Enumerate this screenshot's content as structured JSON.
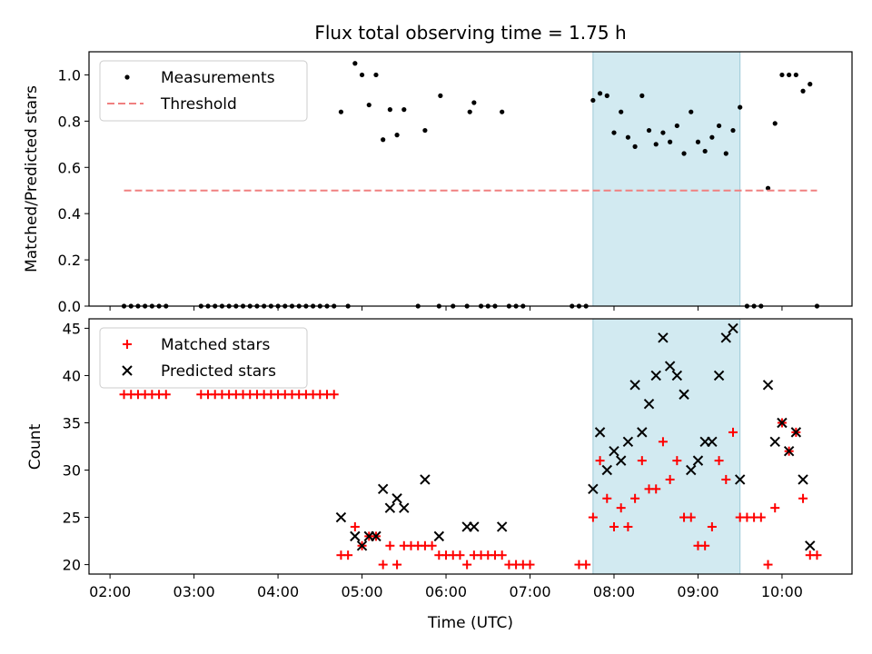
{
  "chart_data": [
    {
      "type": "scatter",
      "title": "Flux total observing time = 1.75 h",
      "xlabel": "",
      "ylabel": "Matched/Predicted stars",
      "ylim": [
        0,
        1.1
      ],
      "yticks": [
        "0.0",
        "0.2",
        "0.4",
        "0.6",
        "0.8",
        "1.0"
      ],
      "grid": false,
      "legend": "top-left",
      "highlight": {
        "x_start": "07:45",
        "x_end": "09:30",
        "color": "#add8e6"
      },
      "series": [
        {
          "name": "Measurements",
          "color": "#000000",
          "marker": "dot",
          "points": [
            [
              "02:10",
              0
            ],
            [
              "02:15",
              0
            ],
            [
              "02:20",
              0
            ],
            [
              "02:25",
              0
            ],
            [
              "02:30",
              0
            ],
            [
              "02:35",
              0
            ],
            [
              "02:40",
              0
            ],
            [
              "03:05",
              0
            ],
            [
              "03:10",
              0
            ],
            [
              "03:15",
              0
            ],
            [
              "03:20",
              0
            ],
            [
              "03:25",
              0
            ],
            [
              "03:30",
              0
            ],
            [
              "03:35",
              0
            ],
            [
              "03:40",
              0
            ],
            [
              "03:45",
              0
            ],
            [
              "03:50",
              0
            ],
            [
              "03:55",
              0
            ],
            [
              "04:00",
              0
            ],
            [
              "04:05",
              0
            ],
            [
              "04:10",
              0
            ],
            [
              "04:15",
              0
            ],
            [
              "04:20",
              0
            ],
            [
              "04:25",
              0
            ],
            [
              "04:30",
              0
            ],
            [
              "04:35",
              0
            ],
            [
              "04:40",
              0
            ],
            [
              "04:50",
              0
            ],
            [
              "04:45",
              0.84
            ],
            [
              "04:55",
              1.05
            ],
            [
              "05:00",
              1.0
            ],
            [
              "05:05",
              0.87
            ],
            [
              "05:10",
              1.0
            ],
            [
              "05:15",
              0.72
            ],
            [
              "05:20",
              0.85
            ],
            [
              "05:25",
              0.74
            ],
            [
              "05:30",
              0.85
            ],
            [
              "05:40",
              0
            ],
            [
              "05:45",
              0.76
            ],
            [
              "05:55",
              0
            ],
            [
              "05:56",
              0.91
            ],
            [
              "06:05",
              0
            ],
            [
              "06:15",
              0
            ],
            [
              "06:17",
              0.84
            ],
            [
              "06:20",
              0.88
            ],
            [
              "06:25",
              0
            ],
            [
              "06:30",
              0
            ],
            [
              "06:35",
              0
            ],
            [
              "06:40",
              0.84
            ],
            [
              "06:45",
              0
            ],
            [
              "06:50",
              0
            ],
            [
              "06:55",
              0
            ],
            [
              "07:30",
              0
            ],
            [
              "07:35",
              0
            ],
            [
              "07:40",
              0
            ],
            [
              "07:45",
              0.89
            ],
            [
              "07:50",
              0.92
            ],
            [
              "07:55",
              0.91
            ],
            [
              "08:00",
              0.75
            ],
            [
              "08:05",
              0.84
            ],
            [
              "08:10",
              0.73
            ],
            [
              "08:15",
              0.69
            ],
            [
              "08:20",
              0.91
            ],
            [
              "08:25",
              0.76
            ],
            [
              "08:30",
              0.7
            ],
            [
              "08:35",
              0.75
            ],
            [
              "08:40",
              0.71
            ],
            [
              "08:45",
              0.78
            ],
            [
              "08:50",
              0.66
            ],
            [
              "08:55",
              0.84
            ],
            [
              "09:00",
              0.71
            ],
            [
              "09:05",
              0.67
            ],
            [
              "09:10",
              0.73
            ],
            [
              "09:15",
              0.78
            ],
            [
              "09:20",
              0.66
            ],
            [
              "09:25",
              0.76
            ],
            [
              "09:30",
              0.86
            ],
            [
              "09:35",
              0
            ],
            [
              "09:40",
              0
            ],
            [
              "09:45",
              0
            ],
            [
              "09:50",
              0.51
            ],
            [
              "09:55",
              0.79
            ],
            [
              "10:00",
              1.0
            ],
            [
              "10:05",
              1.0
            ],
            [
              "10:10",
              1.0
            ],
            [
              "10:15",
              0.93
            ],
            [
              "10:20",
              0.96
            ],
            [
              "10:25",
              0
            ]
          ]
        },
        {
          "name": "Threshold",
          "color": "#f08080",
          "style": "dashed",
          "points": [
            [
              "02:10",
              0.5
            ],
            [
              "10:25",
              0.5
            ]
          ]
        }
      ]
    },
    {
      "type": "scatter",
      "title": "",
      "xlabel": "Time (UTC)",
      "ylabel": "Count",
      "ylim": [
        19,
        46
      ],
      "yticks": [
        "20",
        "25",
        "30",
        "35",
        "40",
        "45"
      ],
      "xticks": [
        "02:00",
        "03:00",
        "04:00",
        "05:00",
        "06:00",
        "07:00",
        "08:00",
        "09:00",
        "10:00"
      ],
      "grid": false,
      "legend": "top-left",
      "highlight": {
        "x_start": "07:45",
        "x_end": "09:30",
        "color": "#add8e6"
      },
      "series": [
        {
          "name": "Matched stars",
          "color": "#ff0000",
          "marker": "plus",
          "points": [
            [
              "02:10",
              38
            ],
            [
              "02:15",
              38
            ],
            [
              "02:20",
              38
            ],
            [
              "02:25",
              38
            ],
            [
              "02:30",
              38
            ],
            [
              "02:35",
              38
            ],
            [
              "02:40",
              38
            ],
            [
              "03:05",
              38
            ],
            [
              "03:10",
              38
            ],
            [
              "03:15",
              38
            ],
            [
              "03:20",
              38
            ],
            [
              "03:25",
              38
            ],
            [
              "03:30",
              38
            ],
            [
              "03:35",
              38
            ],
            [
              "03:40",
              38
            ],
            [
              "03:45",
              38
            ],
            [
              "03:50",
              38
            ],
            [
              "03:55",
              38
            ],
            [
              "04:00",
              38
            ],
            [
              "04:05",
              38
            ],
            [
              "04:10",
              38
            ],
            [
              "04:15",
              38
            ],
            [
              "04:20",
              38
            ],
            [
              "04:25",
              38
            ],
            [
              "04:30",
              38
            ],
            [
              "04:35",
              38
            ],
            [
              "04:40",
              38
            ],
            [
              "04:45",
              21
            ],
            [
              "04:50",
              21
            ],
            [
              "04:55",
              24
            ],
            [
              "05:00",
              22
            ],
            [
              "05:05",
              23
            ],
            [
              "05:10",
              23
            ],
            [
              "05:15",
              20
            ],
            [
              "05:20",
              22
            ],
            [
              "05:25",
              20
            ],
            [
              "05:30",
              22
            ],
            [
              "05:35",
              22
            ],
            [
              "05:40",
              22
            ],
            [
              "05:45",
              22
            ],
            [
              "05:50",
              22
            ],
            [
              "05:55",
              21
            ],
            [
              "06:00",
              21
            ],
            [
              "06:05",
              21
            ],
            [
              "06:10",
              21
            ],
            [
              "06:15",
              20
            ],
            [
              "06:20",
              21
            ],
            [
              "06:25",
              21
            ],
            [
              "06:30",
              21
            ],
            [
              "06:35",
              21
            ],
            [
              "06:40",
              21
            ],
            [
              "06:45",
              20
            ],
            [
              "06:50",
              20
            ],
            [
              "06:55",
              20
            ],
            [
              "07:00",
              20
            ],
            [
              "07:35",
              20
            ],
            [
              "07:40",
              20
            ],
            [
              "07:45",
              25
            ],
            [
              "07:50",
              31
            ],
            [
              "07:55",
              27
            ],
            [
              "08:00",
              24
            ],
            [
              "08:05",
              26
            ],
            [
              "08:10",
              24
            ],
            [
              "08:15",
              27
            ],
            [
              "08:20",
              31
            ],
            [
              "08:25",
              28
            ],
            [
              "08:30",
              28
            ],
            [
              "08:35",
              33
            ],
            [
              "08:40",
              29
            ],
            [
              "08:45",
              31
            ],
            [
              "08:50",
              25
            ],
            [
              "08:55",
              25
            ],
            [
              "09:00",
              22
            ],
            [
              "09:05",
              22
            ],
            [
              "09:10",
              24
            ],
            [
              "09:15",
              31
            ],
            [
              "09:20",
              29
            ],
            [
              "09:25",
              34
            ],
            [
              "09:30",
              25
            ],
            [
              "09:35",
              25
            ],
            [
              "09:40",
              25
            ],
            [
              "09:45",
              25
            ],
            [
              "09:50",
              20
            ],
            [
              "09:55",
              26
            ],
            [
              "10:00",
              35
            ],
            [
              "10:05",
              32
            ],
            [
              "10:10",
              34
            ],
            [
              "10:15",
              27
            ],
            [
              "10:20",
              21
            ],
            [
              "10:25",
              21
            ]
          ]
        },
        {
          "name": "Predicted stars",
          "color": "#000000",
          "marker": "x",
          "points": [
            [
              "04:45",
              25
            ],
            [
              "04:55",
              23
            ],
            [
              "05:00",
              22
            ],
            [
              "05:05",
              23
            ],
            [
              "05:10",
              23
            ],
            [
              "05:15",
              28
            ],
            [
              "05:20",
              26
            ],
            [
              "05:25",
              27
            ],
            [
              "05:30",
              26
            ],
            [
              "05:45",
              29
            ],
            [
              "05:55",
              23
            ],
            [
              "06:15",
              24
            ],
            [
              "06:20",
              24
            ],
            [
              "06:40",
              24
            ],
            [
              "07:45",
              28
            ],
            [
              "07:50",
              34
            ],
            [
              "07:55",
              30
            ],
            [
              "08:00",
              32
            ],
            [
              "08:05",
              31
            ],
            [
              "08:10",
              33
            ],
            [
              "08:15",
              39
            ],
            [
              "08:20",
              34
            ],
            [
              "08:25",
              37
            ],
            [
              "08:30",
              40
            ],
            [
              "08:35",
              44
            ],
            [
              "08:40",
              41
            ],
            [
              "08:45",
              40
            ],
            [
              "08:50",
              38
            ],
            [
              "08:55",
              30
            ],
            [
              "09:00",
              31
            ],
            [
              "09:05",
              33
            ],
            [
              "09:10",
              33
            ],
            [
              "09:15",
              40
            ],
            [
              "09:20",
              44
            ],
            [
              "09:25",
              45
            ],
            [
              "09:30",
              29
            ],
            [
              "09:50",
              39
            ],
            [
              "09:55",
              33
            ],
            [
              "10:00",
              35
            ],
            [
              "10:05",
              32
            ],
            [
              "10:10",
              34
            ],
            [
              "10:15",
              29
            ],
            [
              "10:20",
              22
            ]
          ]
        }
      ]
    }
  ]
}
